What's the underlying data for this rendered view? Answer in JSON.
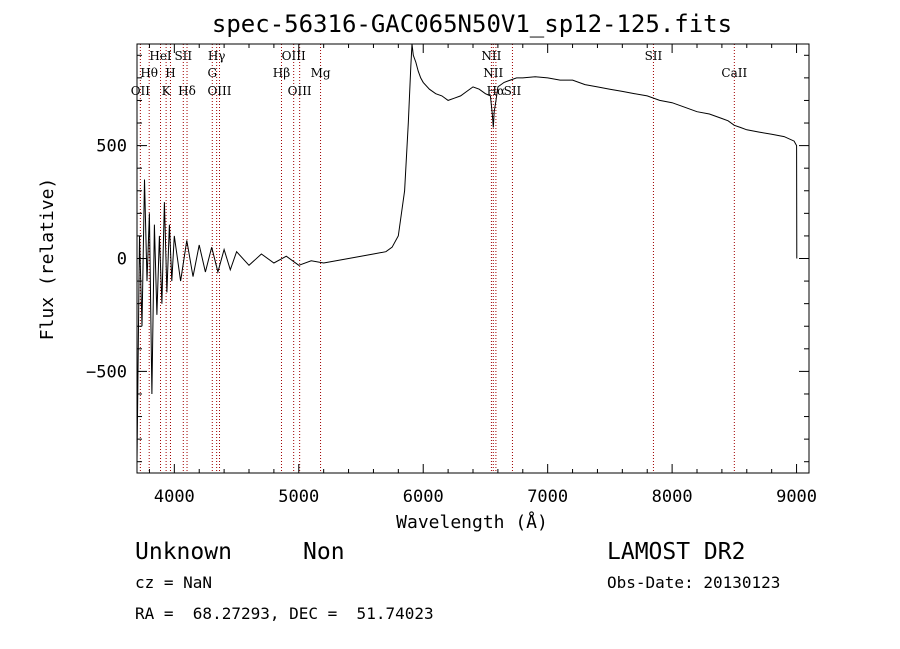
{
  "chart_data": {
    "type": "line",
    "title": "spec-56316-GAC065N50V1_sp12-125.fits",
    "xlabel": "Wavelength (Å)",
    "ylabel": "Flux (relative)",
    "xlim": [
      3700,
      9100
    ],
    "ylim": [
      -950,
      950
    ],
    "x_ticks": [
      4000,
      5000,
      6000,
      7000,
      8000,
      9000
    ],
    "x_tick_labels": [
      "4000",
      "5000",
      "6000",
      "7000",
      "8000",
      "9000"
    ],
    "y_ticks": [
      -500,
      0,
      500
    ],
    "y_tick_labels": [
      "−500",
      "0",
      "500"
    ],
    "grid": false,
    "line_color": "#000000",
    "marker_color": "#a00000",
    "series": [
      {
        "x": [
          3700,
          3720,
          3740,
          3760,
          3780,
          3800,
          3820,
          3840,
          3860,
          3880,
          3900,
          3920,
          3940,
          3960,
          3980,
          4000,
          4050,
          4100,
          4150,
          4200,
          4250,
          4300,
          4350,
          4400,
          4450,
          4500,
          4600,
          4700,
          4800,
          4900,
          5000,
          5100,
          5200,
          5300,
          5400,
          5500,
          5600,
          5700,
          5750,
          5800,
          5850,
          5880,
          5900,
          5910,
          5920,
          5940,
          5960,
          5980,
          6000,
          6050,
          6100,
          6150,
          6200,
          6250,
          6300,
          6350,
          6400,
          6450,
          6500,
          6540,
          6555,
          6563,
          6570,
          6585,
          6600,
          6650,
          6700,
          6750,
          6800,
          6900,
          7000,
          7100,
          7200,
          7300,
          7400,
          7500,
          7600,
          7700,
          7800,
          7900,
          8000,
          8100,
          8200,
          8300,
          8400,
          8450,
          8500,
          8550,
          8600,
          8700,
          8800,
          8900,
          8980,
          9000,
          9002
        ],
        "y": [
          -900,
          100,
          -300,
          350,
          -100,
          200,
          -600,
          150,
          -250,
          100,
          -200,
          250,
          -150,
          150,
          -100,
          100,
          -100,
          80,
          -80,
          60,
          -60,
          50,
          -60,
          40,
          -50,
          30,
          -30,
          20,
          -20,
          10,
          -30,
          -10,
          -20,
          -10,
          0,
          10,
          20,
          30,
          50,
          100,
          300,
          600,
          850,
          950,
          900,
          870,
          830,
          800,
          780,
          750,
          730,
          720,
          700,
          710,
          720,
          740,
          760,
          750,
          730,
          720,
          640,
          580,
          650,
          700,
          760,
          780,
          790,
          800,
          800,
          805,
          800,
          790,
          790,
          770,
          760,
          750,
          740,
          730,
          720,
          700,
          690,
          670,
          650,
          640,
          620,
          610,
          590,
          580,
          570,
          560,
          550,
          540,
          520,
          500,
          0
        ]
      }
    ],
    "lines": [
      {
        "wl": 3727,
        "label": "OII",
        "row": 3
      },
      {
        "wl": 3798,
        "label": "Hθ",
        "row": 2
      },
      {
        "wl": 3889,
        "label": "HeI",
        "row": 1
      },
      {
        "wl": 3934,
        "label": "K",
        "row": 3
      },
      {
        "wl": 3969,
        "label": "H",
        "row": 2
      },
      {
        "wl": 4072,
        "label": "SII",
        "row": 1
      },
      {
        "wl": 4102,
        "label": "Hδ",
        "row": 3
      },
      {
        "wl": 4305,
        "label": "G",
        "row": 2
      },
      {
        "wl": 4340,
        "label": "Hγ",
        "row": 1
      },
      {
        "wl": 4363,
        "label": "OIII",
        "row": 3
      },
      {
        "wl": 4861,
        "label": "Hβ",
        "row": 2
      },
      {
        "wl": 4959,
        "label": "OIII",
        "row": 1
      },
      {
        "wl": 5007,
        "label": "OIII",
        "row": 3
      },
      {
        "wl": 5175,
        "label": "Mg",
        "row": 2
      },
      {
        "wl": 6548,
        "label": "NII",
        "row": 1
      },
      {
        "wl": 6563,
        "label": "NII",
        "row": 2
      },
      {
        "wl": 6584,
        "label": "Hα",
        "row": 3
      },
      {
        "wl": 6717,
        "label": "SII",
        "row": 3
      },
      {
        "wl": 7850,
        "label": "SII",
        "row": 1
      },
      {
        "wl": 8500,
        "label": "CaII",
        "row": 2
      }
    ]
  },
  "footer": {
    "class_label": "Unknown",
    "subclass_label": "Non",
    "survey": "LAMOST DR2",
    "cz": "cz = NaN",
    "obs_date": "Obs-Date: 20130123",
    "coords": "RA =  68.27293, DEC =  51.74023"
  }
}
